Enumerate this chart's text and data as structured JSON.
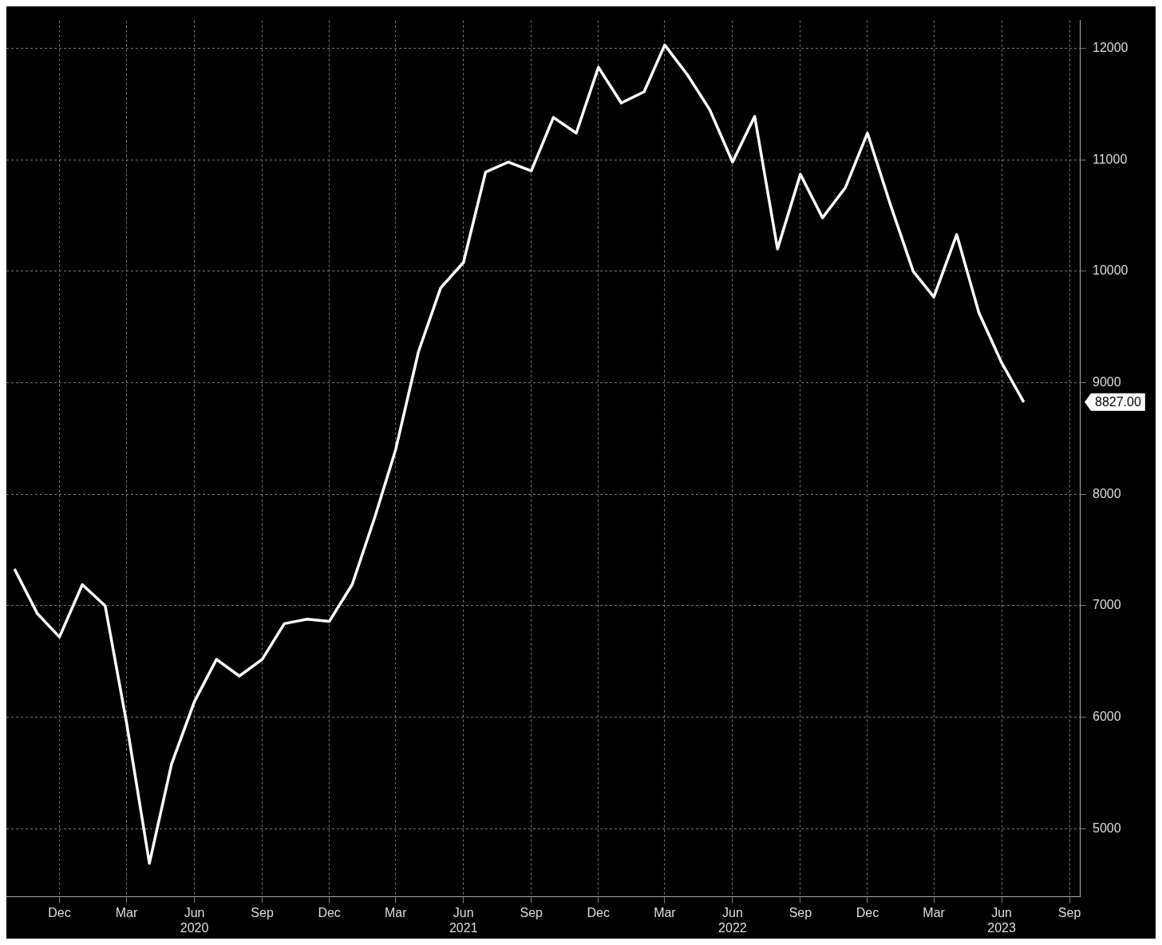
{
  "chart_data": {
    "type": "line",
    "x": [
      "2019-10",
      "2019-11",
      "2019-12",
      "2020-01",
      "2020-02",
      "2020-03",
      "2020-04",
      "2020-05",
      "2020-06",
      "2020-07",
      "2020-08",
      "2020-09",
      "2020-10",
      "2020-11",
      "2020-12",
      "2021-01",
      "2021-02",
      "2021-03",
      "2021-04",
      "2021-05",
      "2021-06",
      "2021-07",
      "2021-08",
      "2021-09",
      "2021-10",
      "2021-11",
      "2021-12",
      "2022-01",
      "2022-02",
      "2022-03",
      "2022-04",
      "2022-05",
      "2022-06",
      "2022-07",
      "2022-08",
      "2022-09",
      "2022-10",
      "2022-11",
      "2022-12",
      "2023-01",
      "2023-02",
      "2023-03",
      "2023-04",
      "2023-05",
      "2023-06",
      "2023-07"
    ],
    "series": [
      {
        "color": "#ffffff",
        "values": [
          7330,
          6930,
          6720,
          7190,
          7000,
          5950,
          4690,
          5580,
          6140,
          6520,
          6370,
          6520,
          6840,
          6880,
          6860,
          7190,
          7800,
          8400,
          9280,
          9850,
          10080,
          10890,
          10980,
          10900,
          11380,
          11240,
          11830,
          11510,
          11610,
          12030,
          11760,
          11450,
          10980,
          11390,
          10200,
          10870,
          10480,
          10750,
          11240,
          10600,
          10000,
          9770,
          10330,
          9630,
          9180,
          8827
        ]
      }
    ],
    "xlim": [
      "2019-09-20",
      "2023-09-15"
    ],
    "xticks": [
      {
        "value": "2019-12",
        "label": "Dec"
      },
      {
        "value": "2020-03",
        "label": "Mar"
      },
      {
        "value": "2020-06",
        "label": "Jun\n2020"
      },
      {
        "value": "2020-09",
        "label": "Sep"
      },
      {
        "value": "2020-12",
        "label": "Dec"
      },
      {
        "value": "2021-03",
        "label": "Mar"
      },
      {
        "value": "2021-06",
        "label": "Jun\n2021"
      },
      {
        "value": "2021-09",
        "label": "Sep"
      },
      {
        "value": "2021-12",
        "label": "Dec"
      },
      {
        "value": "2022-03",
        "label": "Mar"
      },
      {
        "value": "2022-06",
        "label": "Jun\n2022"
      },
      {
        "value": "2022-09",
        "label": "Sep"
      },
      {
        "value": "2022-12",
        "label": "Dec"
      },
      {
        "value": "2023-03",
        "label": "Mar"
      },
      {
        "value": "2023-06",
        "label": "Jun\n2023"
      },
      {
        "value": "2023-09",
        "label": "Sep"
      }
    ],
    "ylim": [
      4390,
      12250
    ],
    "yticks": [
      5000,
      6000,
      7000,
      8000,
      9000,
      10000,
      11000,
      12000
    ],
    "annotations": [
      "8827.00"
    ],
    "grid": true,
    "legend": false,
    "marker": "none",
    "line_style": "solid"
  }
}
